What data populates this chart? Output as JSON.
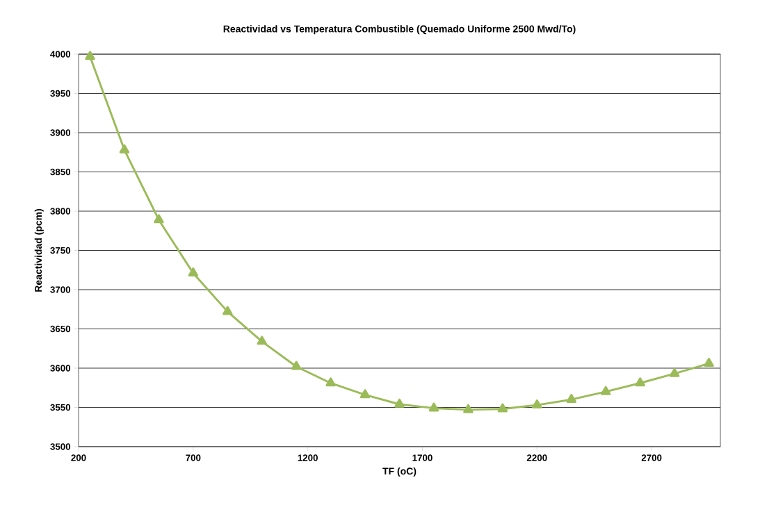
{
  "chart_data": {
    "type": "line",
    "title": "Reactividad vs Temperatura Combustible (Quemado Uniforme 2500 Mwd/To)",
    "xlabel": "TF (oC)",
    "ylabel": "Reactividad (pcm)",
    "x": [
      250,
      400,
      550,
      700,
      850,
      1000,
      1150,
      1300,
      1450,
      1600,
      1750,
      1900,
      2050,
      2200,
      2350,
      2500,
      2650,
      2800,
      2950
    ],
    "series": [
      {
        "color": "#9bbb59",
        "values": [
          3997,
          3878,
          3789,
          3721,
          3672,
          3634,
          3602,
          3581,
          3566,
          3554,
          3549,
          3547,
          3548,
          3553,
          3560,
          3570,
          3581,
          3593,
          3606
        ]
      }
    ],
    "xlim": [
      200,
      3000
    ],
    "xticks": [
      200,
      700,
      1200,
      1700,
      2200,
      2700
    ],
    "ylim": [
      3500,
      4000
    ],
    "yticks": [
      3500,
      3550,
      3600,
      3650,
      3700,
      3750,
      3800,
      3850,
      3900,
      3950,
      4000
    ],
    "grid": "y",
    "marker": "triangle",
    "line_style": "solid"
  }
}
